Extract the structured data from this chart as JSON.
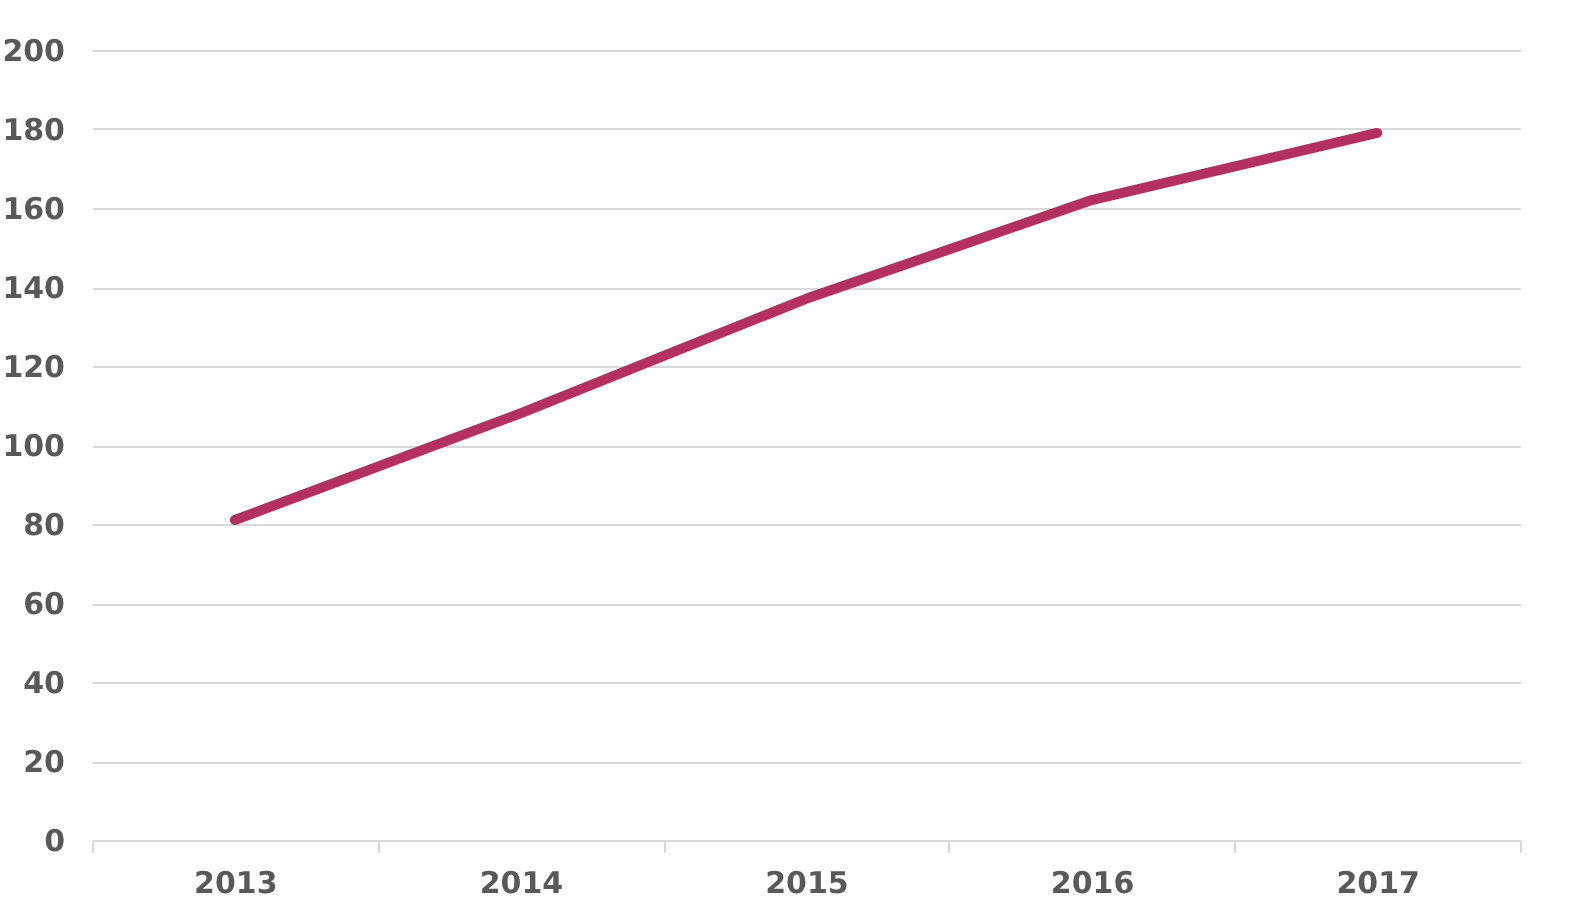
{
  "chart_data": {
    "type": "line",
    "categories": [
      "2013",
      "2014",
      "2015",
      "2016",
      "2017"
    ],
    "series": [
      {
        "color": "#b3305f",
        "values": [
          81,
          108,
          137,
          162,
          179
        ]
      }
    ],
    "ylim": [
      0,
      200
    ],
    "yticks": [
      0,
      20,
      40,
      60,
      80,
      100,
      120,
      140,
      160,
      180,
      200
    ],
    "grid": "y",
    "marker": "none",
    "line_style": "solid"
  }
}
